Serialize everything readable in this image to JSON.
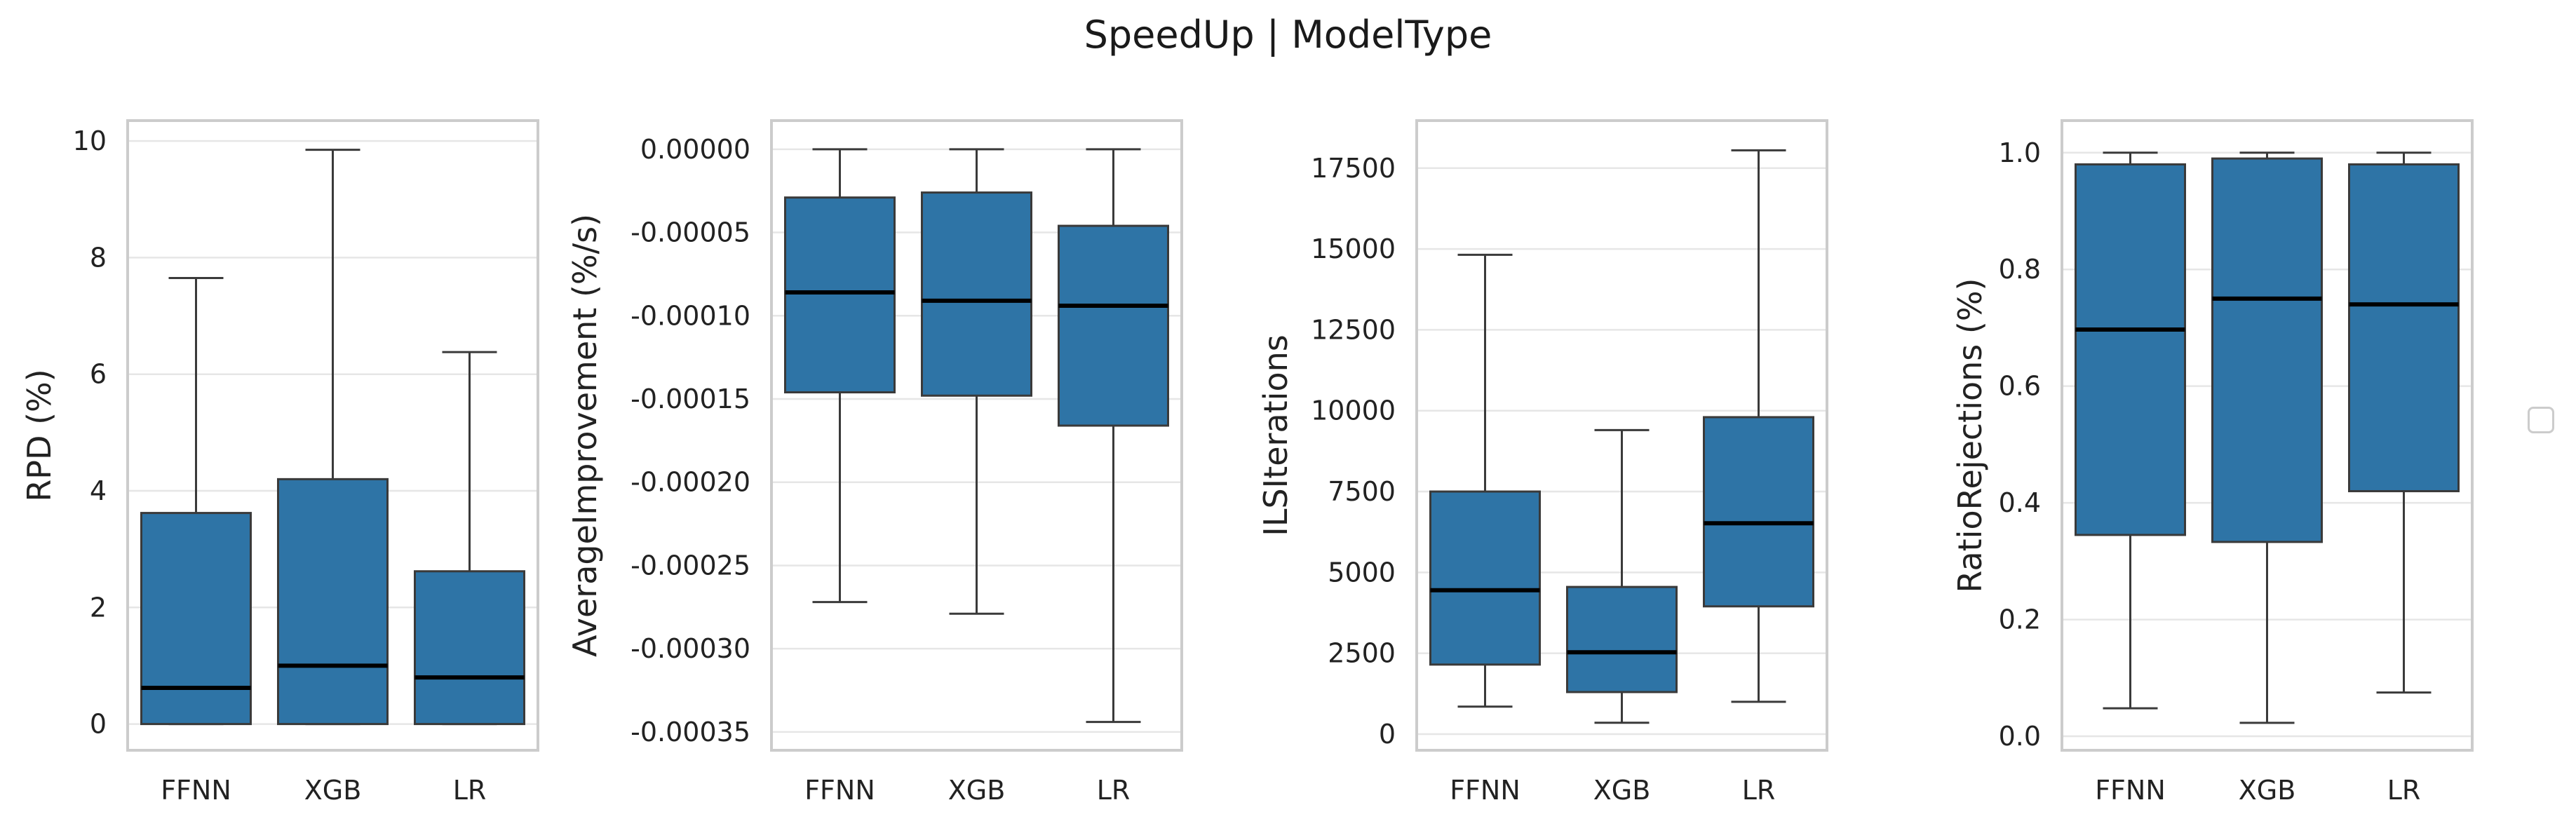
{
  "title": "SpeedUp | ModelType",
  "colors": {
    "box_fill": "#2e74a6",
    "box_edge": "#3a3a3a",
    "median": "#000000",
    "grid": "#e6e6e6",
    "frame": "#cccccc"
  },
  "chart_data": [
    {
      "type": "box",
      "categories": [
        "FFNN",
        "XGB",
        "LR"
      ],
      "ylabel": "RPD (%)",
      "ylim": [
        -0.45,
        10.35
      ],
      "yticks": [
        0,
        2,
        4,
        6,
        8,
        10
      ],
      "ytick_labels": [
        "0",
        "2",
        "4",
        "6",
        "8",
        "10"
      ],
      "boxes": [
        {
          "whisker_low": 0,
          "q1": 0,
          "median": 0.62,
          "q3": 3.62,
          "whisker_high": 7.65
        },
        {
          "whisker_low": 0,
          "q1": 0,
          "median": 1.0,
          "q3": 4.2,
          "whisker_high": 9.85
        },
        {
          "whisker_low": 0,
          "q1": 0,
          "median": 0.8,
          "q3": 2.62,
          "whisker_high": 6.38
        }
      ]
    },
    {
      "type": "box",
      "categories": [
        "FFNN",
        "XGB",
        "LR"
      ],
      "ylabel": "AverageImprovement (%/s)",
      "ylim": [
        -0.000361,
        1.72e-05
      ],
      "yticks": [
        0,
        -5e-05,
        -0.0001,
        -0.00015,
        -0.0002,
        -0.00025,
        -0.0003,
        -0.00035
      ],
      "ytick_labels": [
        "0.00000",
        "-0.00005",
        "-0.00010",
        "-0.00015",
        "-0.00020",
        "-0.00025",
        "-0.00030",
        "-0.00035"
      ],
      "boxes": [
        {
          "whisker_low": -0.000272,
          "q1": -0.000146,
          "median": -8.6e-05,
          "q3": -2.9e-05,
          "whisker_high": 0
        },
        {
          "whisker_low": -0.000279,
          "q1": -0.000148,
          "median": -9.1e-05,
          "q3": -2.6e-05,
          "whisker_high": 0
        },
        {
          "whisker_low": -0.000344,
          "q1": -0.000166,
          "median": -9.4e-05,
          "q3": -4.6e-05,
          "whisker_high": 0
        }
      ]
    },
    {
      "type": "box",
      "categories": [
        "FFNN",
        "XGB",
        "LR"
      ],
      "ylabel": "ILSIterations",
      "ylim": [
        -500,
        18970
      ],
      "yticks": [
        0,
        2500,
        5000,
        7500,
        10000,
        12500,
        15000,
        17500
      ],
      "ytick_labels": [
        "0",
        "2500",
        "5000",
        "7500",
        "10000",
        "12500",
        "15000",
        "17500"
      ],
      "boxes": [
        {
          "whisker_low": 850,
          "q1": 2150,
          "median": 4450,
          "q3": 7500,
          "whisker_high": 14820
        },
        {
          "whisker_low": 350,
          "q1": 1300,
          "median": 2530,
          "q3": 4550,
          "whisker_high": 9400
        },
        {
          "whisker_low": 1000,
          "q1": 3950,
          "median": 6520,
          "q3": 9800,
          "whisker_high": 18050
        }
      ]
    },
    {
      "type": "box",
      "categories": [
        "FFNN",
        "XGB",
        "LR"
      ],
      "ylabel": "RatioRejections (%)",
      "ylim": [
        -0.024,
        1.055
      ],
      "yticks": [
        0,
        0.2,
        0.4,
        0.6,
        0.8,
        1.0
      ],
      "ytick_labels": [
        "0.0",
        "0.2",
        "0.4",
        "0.6",
        "0.8",
        "1.0"
      ],
      "boxes": [
        {
          "whisker_low": 0.048,
          "q1": 0.345,
          "median": 0.697,
          "q3": 0.98,
          "whisker_high": 1.0
        },
        {
          "whisker_low": 0.023,
          "q1": 0.333,
          "median": 0.75,
          "q3": 0.99,
          "whisker_high": 1.0
        },
        {
          "whisker_low": 0.075,
          "q1": 0.42,
          "median": 0.74,
          "q3": 0.98,
          "whisker_high": 1.0
        }
      ]
    }
  ]
}
